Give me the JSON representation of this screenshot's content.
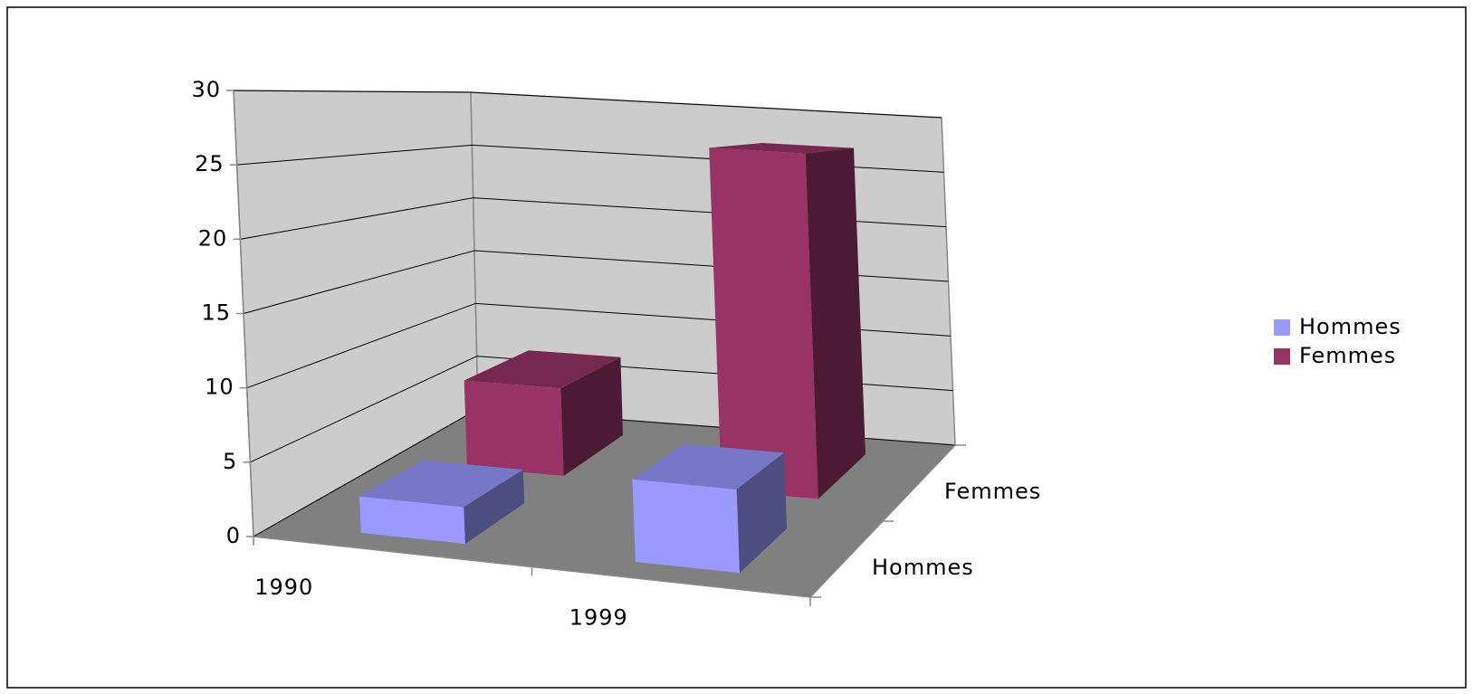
{
  "chart_data": {
    "type": "bar3d",
    "categories": [
      "1990",
      "1999"
    ],
    "series": [
      {
        "name": "Hommes",
        "color": "#9999ff",
        "values": [
          2.5,
          5.5
        ]
      },
      {
        "name": "Femmes",
        "color": "#993366",
        "values": [
          7,
          27
        ]
      }
    ],
    "ylim": [
      0,
      30
    ],
    "yticks": [
      0,
      5,
      10,
      15,
      20,
      25,
      30
    ],
    "grid": true,
    "legend": "right"
  }
}
